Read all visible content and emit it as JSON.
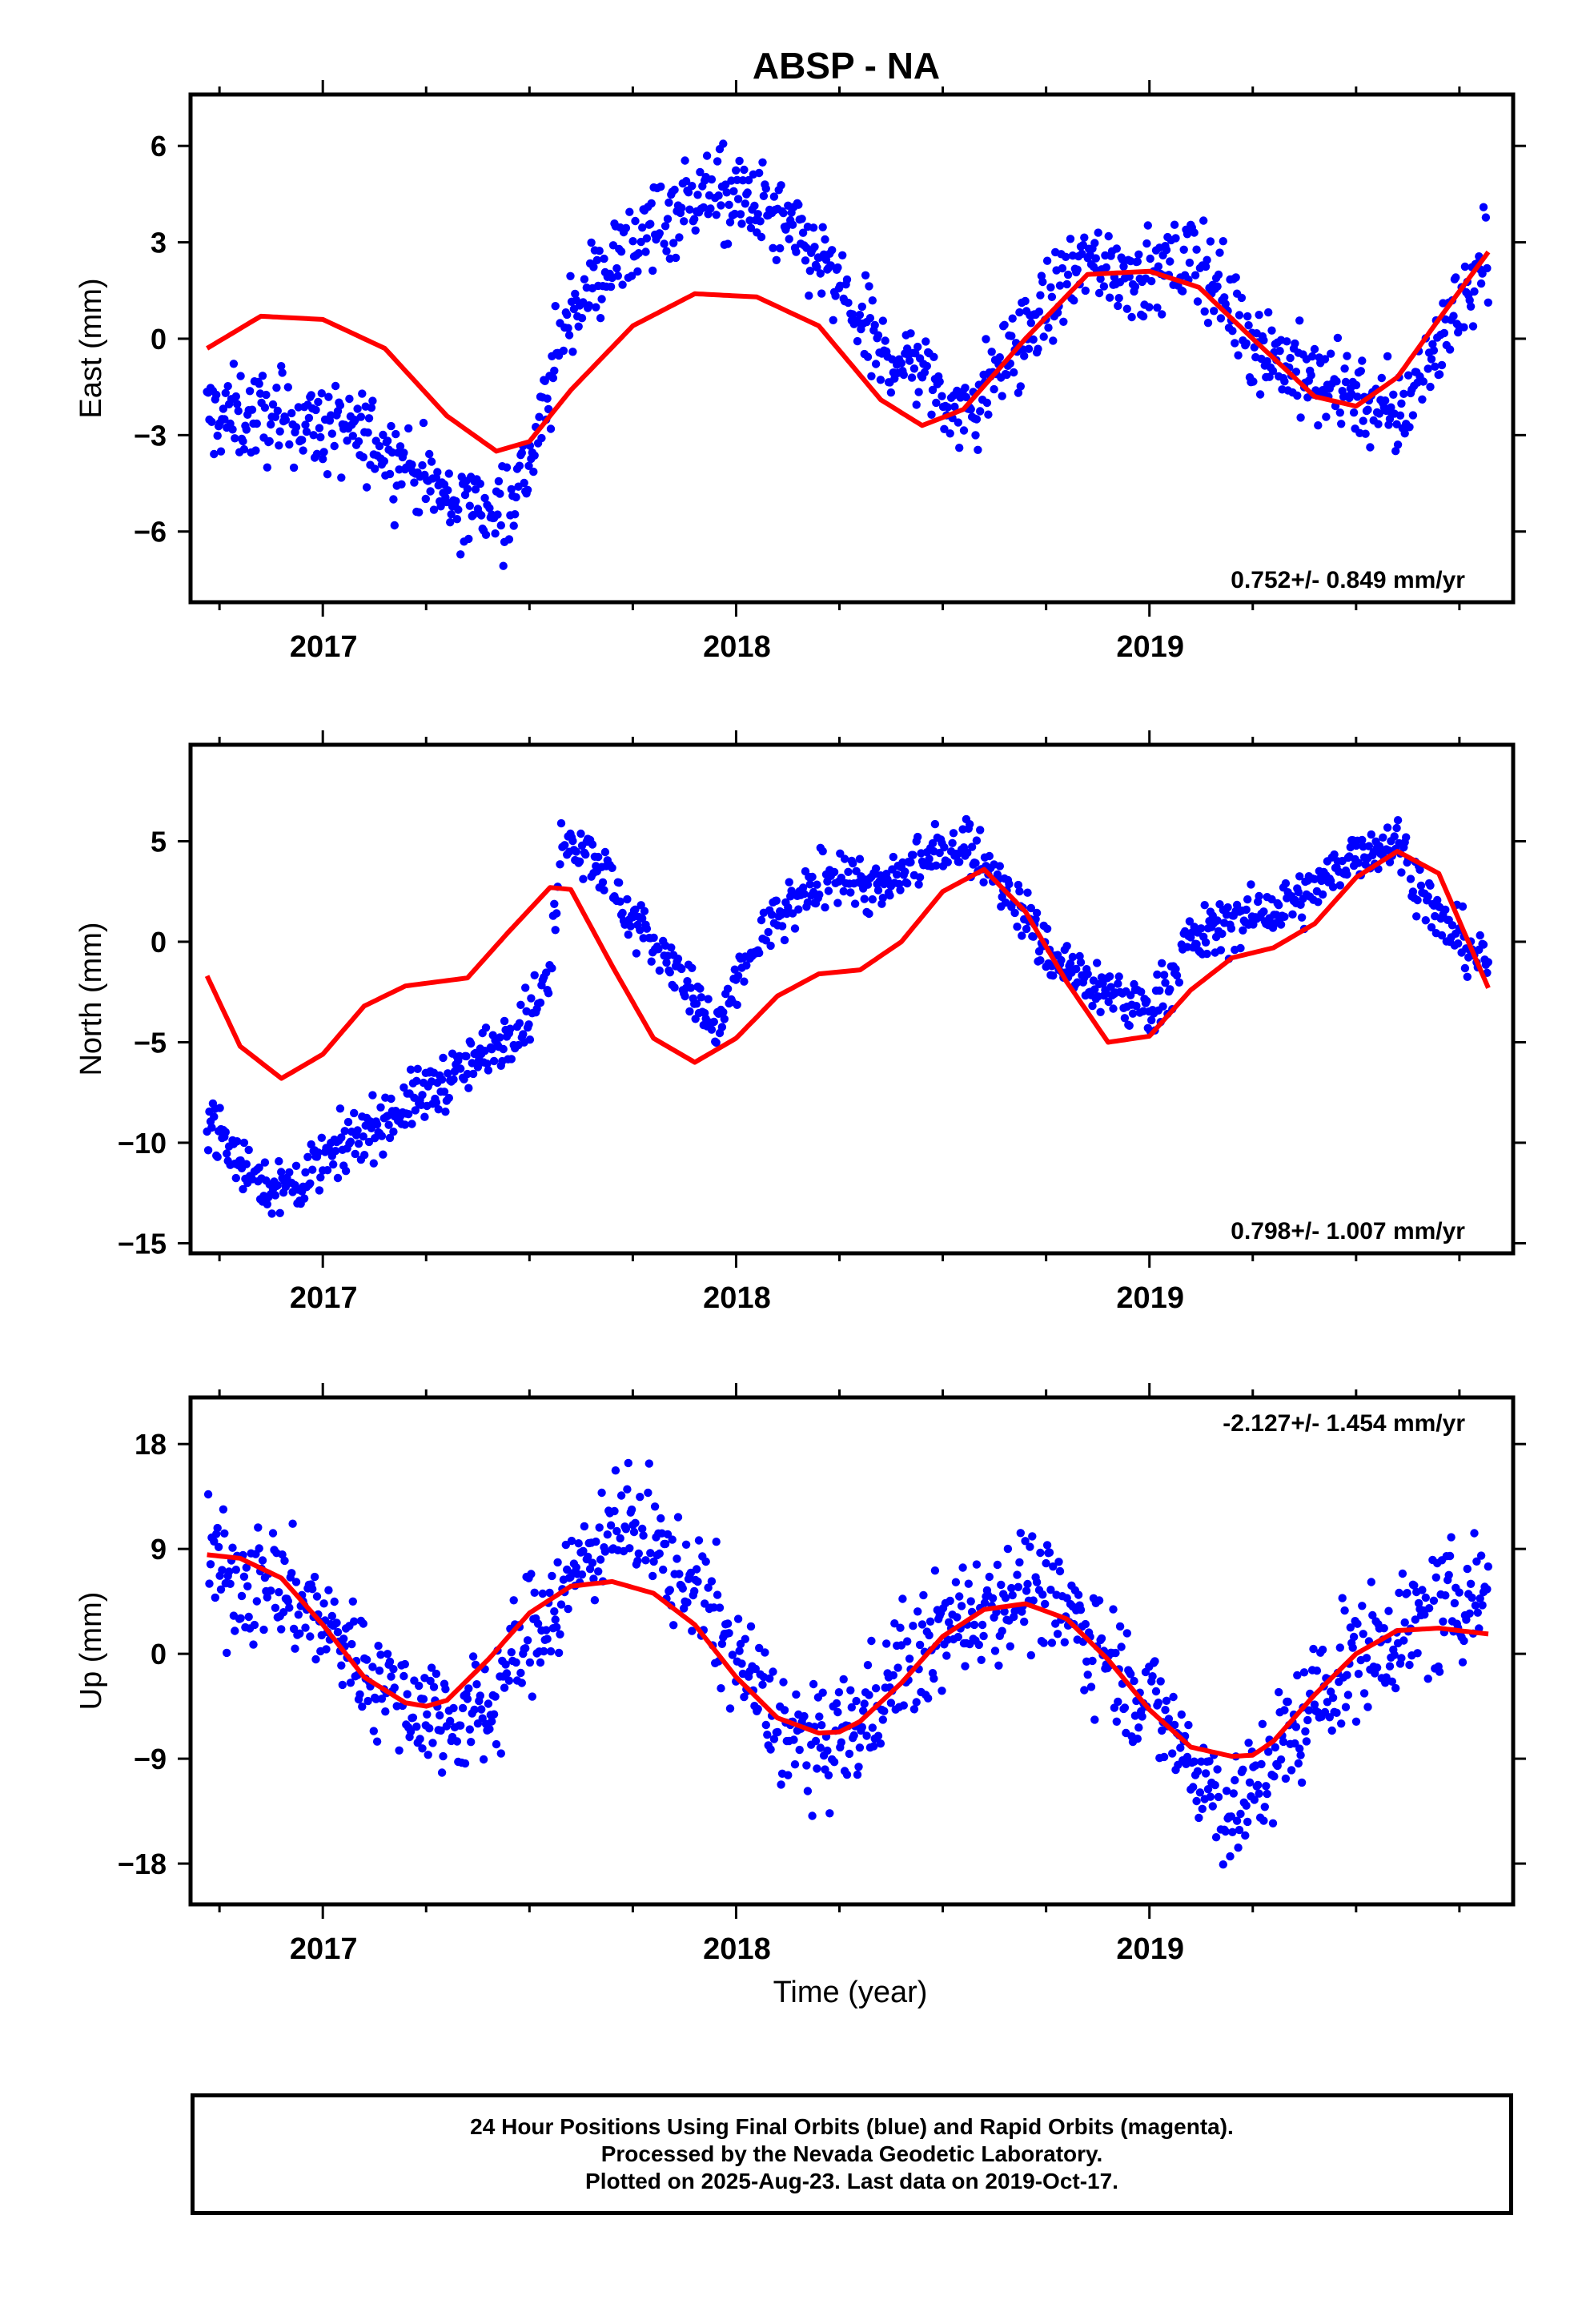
{
  "title": "ABSP - NA",
  "xlabel": "Time (year)",
  "colors": {
    "points": "#0000ff",
    "fit": "#ff0000",
    "frame": "#000000"
  },
  "footer": {
    "line1": "24 Hour Positions Using Final Orbits (blue) and Rapid Orbits (magenta).",
    "line2": "Processed by the Nevada Geodetic Laboratory.",
    "line3": "Plotted on 2025-Aug-23. Last data on 2019-Oct-17."
  },
  "chart_data": [
    {
      "type": "scatter",
      "ylabel": "East (mm)",
      "rate_label": "0.752+/- 0.849 mm/yr",
      "rate_position": "bottom-right",
      "xlim": [
        2016.68,
        2019.88
      ],
      "ylim": [
        -8.2,
        7.6
      ],
      "yticks": [
        -6,
        -3,
        0,
        3,
        6
      ],
      "xticks": [
        2017,
        2018,
        2019
      ],
      "fit_series": {
        "name": "fit",
        "x": [
          2016.72,
          2016.85,
          2017.0,
          2017.15,
          2017.3,
          2017.42,
          2017.5,
          2017.6,
          2017.75,
          2017.9,
          2018.05,
          2018.2,
          2018.35,
          2018.45,
          2018.55,
          2018.7,
          2018.85,
          2019.0,
          2019.12,
          2019.25,
          2019.4,
          2019.5,
          2019.6,
          2019.7,
          2019.82
        ],
        "y": [
          -0.3,
          0.7,
          0.6,
          -0.3,
          -2.4,
          -3.5,
          -3.2,
          -1.6,
          0.4,
          1.4,
          1.3,
          0.4,
          -1.9,
          -2.7,
          -2.2,
          0.0,
          2.0,
          2.1,
          1.6,
          0.0,
          -1.8,
          -2.1,
          -1.2,
          0.6,
          2.7
        ]
      },
      "points_model": {
        "x": [
          2016.72,
          2016.85,
          2017.0,
          2017.15,
          2017.3,
          2017.42,
          2017.5,
          2017.6,
          2017.75,
          2017.9,
          2018.05,
          2018.2,
          2018.35,
          2018.45,
          2018.55,
          2018.7,
          2018.85,
          2019.0,
          2019.12,
          2019.25,
          2019.4,
          2019.5,
          2019.6,
          2019.7,
          2019.82
        ],
        "y": [
          -2.4,
          -2.4,
          -2.7,
          -3.3,
          -5.0,
          -5.3,
          -4.0,
          1.0,
          3.0,
          4.5,
          4.2,
          2.5,
          -0.5,
          -0.8,
          -2.5,
          0.2,
          2.5,
          1.9,
          2.6,
          0.0,
          -1.4,
          -1.6,
          -2.6,
          0.0,
          2.5
        ],
        "spread": 1.0
      }
    },
    {
      "type": "scatter",
      "ylabel": "North (mm)",
      "rate_label": "0.798+/- 1.007 mm/yr",
      "rate_position": "bottom-right",
      "xlim": [
        2016.68,
        2019.88
      ],
      "ylim": [
        -15.5,
        9.8
      ],
      "yticks": [
        -15,
        -10,
        -5,
        0,
        5
      ],
      "xticks": [
        2017,
        2018,
        2019
      ],
      "fit_series": {
        "name": "fit",
        "x": [
          2016.72,
          2016.8,
          2016.9,
          2017.0,
          2017.1,
          2017.2,
          2017.35,
          2017.45,
          2017.55,
          2017.6,
          2017.7,
          2017.8,
          2017.9,
          2018.0,
          2018.1,
          2018.2,
          2018.3,
          2018.4,
          2018.5,
          2018.6,
          2018.7,
          2018.8,
          2018.9,
          2019.0,
          2019.1,
          2019.2,
          2019.3,
          2019.4,
          2019.5,
          2019.6,
          2019.7,
          2019.82
        ],
        "y": [
          -1.7,
          -5.2,
          -6.8,
          -5.6,
          -3.2,
          -2.2,
          -1.8,
          0.5,
          2.7,
          2.6,
          -1.2,
          -4.8,
          -6.0,
          -4.8,
          -2.7,
          -1.6,
          -1.4,
          0.0,
          2.5,
          3.6,
          1.5,
          -2.0,
          -5.0,
          -4.7,
          -2.4,
          -0.8,
          -0.3,
          0.9,
          3.2,
          4.5,
          3.4,
          -2.3
        ]
      },
      "points_model": {
        "x": [
          2016.72,
          2016.8,
          2016.9,
          2017.0,
          2017.1,
          2017.25,
          2017.4,
          2017.5,
          2017.55,
          2017.58,
          2017.65,
          2017.75,
          2017.85,
          2017.9,
          2017.95,
          2018.05,
          2018.15,
          2018.25,
          2018.35,
          2018.45,
          2018.55,
          2018.65,
          2018.75,
          2018.85,
          2018.95,
          2019.0,
          2019.1,
          2019.2,
          2019.3,
          2019.4,
          2019.5,
          2019.6,
          2019.7,
          2019.82
        ],
        "y": [
          -8.5,
          -11.0,
          -12.5,
          -11.0,
          -9.5,
          -7.5,
          -5.5,
          -3.5,
          -2.0,
          5.5,
          4.5,
          1.0,
          -1.0,
          -3.0,
          -4.5,
          0.0,
          2.0,
          3.5,
          2.5,
          4.0,
          5.0,
          3.0,
          -0.5,
          -2.0,
          -3.0,
          -3.5,
          0.0,
          1.0,
          1.5,
          2.5,
          4.5,
          5.0,
          1.0,
          -1.0
        ],
        "spread": 1.0
      }
    },
    {
      "type": "scatter",
      "ylabel": "Up (mm)",
      "rate_label": "-2.127+/- 1.454 mm/yr",
      "rate_position": "top-right",
      "xlim": [
        2016.68,
        2019.88
      ],
      "ylim": [
        -21.5,
        22.0
      ],
      "yticks": [
        -18,
        -9,
        0,
        9,
        18
      ],
      "xticks": [
        2017,
        2018,
        2019
      ],
      "fit_series": {
        "name": "fit",
        "x": [
          2016.72,
          2016.8,
          2016.9,
          2017.0,
          2017.1,
          2017.2,
          2017.25,
          2017.3,
          2017.4,
          2017.5,
          2017.6,
          2017.7,
          2017.8,
          2017.9,
          2018.0,
          2018.1,
          2018.2,
          2018.25,
          2018.3,
          2018.4,
          2018.5,
          2018.6,
          2018.7,
          2018.8,
          2018.9,
          2019.0,
          2019.1,
          2019.2,
          2019.25,
          2019.3,
          2019.4,
          2019.5,
          2019.6,
          2019.7,
          2019.82
        ],
        "y": [
          8.5,
          8.2,
          6.5,
          2.5,
          -2.0,
          -4.2,
          -4.5,
          -4.0,
          -0.5,
          3.5,
          5.8,
          6.2,
          5.2,
          2.5,
          -2.0,
          -5.5,
          -6.8,
          -6.7,
          -5.8,
          -2.5,
          1.5,
          3.8,
          4.3,
          3.0,
          -0.5,
          -4.8,
          -8.0,
          -8.8,
          -8.7,
          -7.5,
          -3.5,
          0.0,
          2.0,
          2.2,
          1.7
        ]
      },
      "points_model": {
        "x": [
          2016.72,
          2016.8,
          2016.9,
          2017.0,
          2017.1,
          2017.2,
          2017.3,
          2017.4,
          2017.5,
          2017.6,
          2017.7,
          2017.8,
          2017.9,
          2018.0,
          2018.1,
          2018.2,
          2018.3,
          2018.4,
          2018.5,
          2018.6,
          2018.7,
          2018.8,
          2018.9,
          2019.0,
          2019.1,
          2019.2,
          2019.3,
          2019.4,
          2019.5,
          2019.6,
          2019.7,
          2019.82
        ],
        "y": [
          7.5,
          6.5,
          5.5,
          3.0,
          -1.0,
          -4.0,
          -5.5,
          -5.0,
          2.0,
          6.0,
          12.0,
          9.0,
          6.0,
          0.0,
          -6.0,
          -8.5,
          -6.0,
          -1.0,
          2.0,
          4.0,
          6.0,
          3.5,
          0.0,
          -4.0,
          -9.0,
          -14.0,
          -9.0,
          -4.0,
          0.0,
          2.0,
          3.5,
          6.0
        ],
        "spread": 3.6
      }
    }
  ]
}
